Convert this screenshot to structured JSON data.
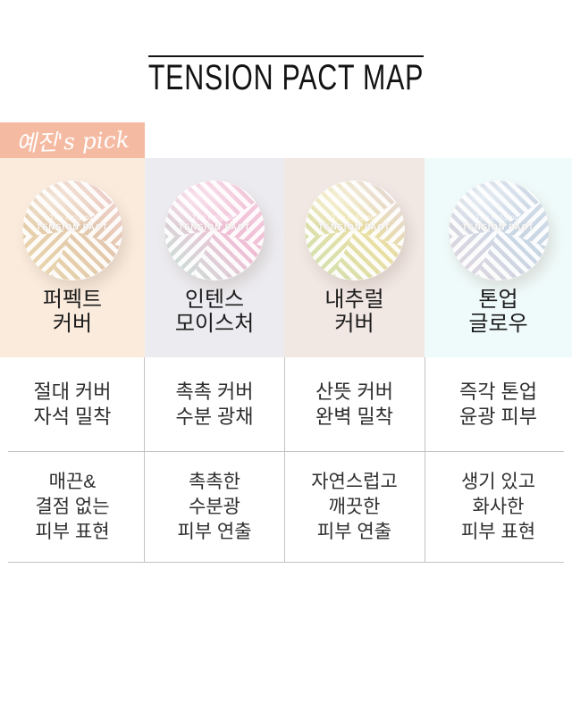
{
  "header": {
    "title": "TENSION PACT MAP"
  },
  "badge": {
    "label": "예진's pick",
    "color": "#f5baa2"
  },
  "compact_label": {
    "script": "The Original",
    "brand": "TENSION PACT"
  },
  "table": {
    "divider_color": "#c3c3c3"
  },
  "products": [
    {
      "id": "perfect-cover",
      "name": "퍼펙트\n커버",
      "bg": "#faebdd",
      "row1": "절대 커버\n자석 밀착",
      "row2": "매끈&\n결점 없는\n피부 표현",
      "compact": {
        "g1": "#f2cbcf",
        "g2": "#e3c8ab",
        "g3": "#ead9ae"
      }
    },
    {
      "id": "intense-moisture",
      "name": "인텐스\n모이스처",
      "bg": "#ecebef",
      "row1": "촉촉 커버\n수분 광채",
      "row2": "촉촉한\n수분광\n피부 연출",
      "compact": {
        "g1": "#f4c6da",
        "g2": "#f0bfd6",
        "g3": "#c2e6d8"
      }
    },
    {
      "id": "natural-cover",
      "name": "내추럴\n커버",
      "bg": "#f1e7e3",
      "row1": "산뜻 커버\n완벽 밀착",
      "row2": "자연스럽고\n깨끗한\n피부 연출",
      "compact": {
        "g1": "#e2d0e2",
        "g2": "#eadfa2",
        "g3": "#cfe0b2"
      }
    },
    {
      "id": "tone-up-glow",
      "name": "톤업\n글로우",
      "bg": "#effbfa",
      "row1": "즉각 톤업\n윤광 피부",
      "row2": "생기 있고\n화사한\n피부 표현",
      "compact": {
        "g1": "#ccd8e6",
        "g2": "#c9d6e4",
        "g3": "#e4d6de"
      }
    }
  ]
}
